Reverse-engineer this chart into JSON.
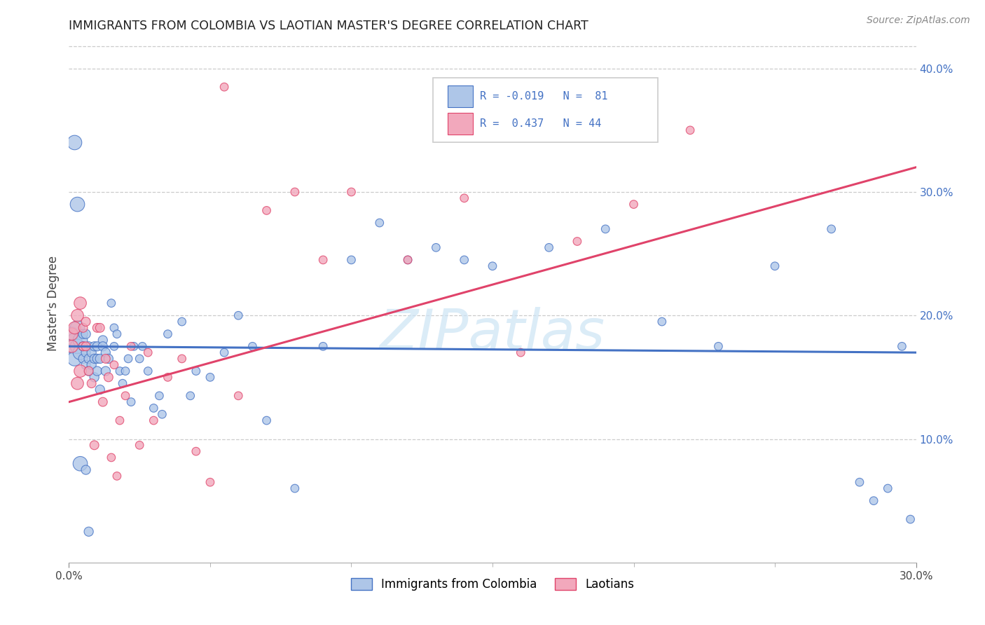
{
  "title": "IMMIGRANTS FROM COLOMBIA VS LAOTIAN MASTER'S DEGREE CORRELATION CHART",
  "source": "Source: ZipAtlas.com",
  "ylabel": "Master's Degree",
  "right_yticks": [
    "40.0%",
    "30.0%",
    "20.0%",
    "10.0%"
  ],
  "right_ytick_vals": [
    0.4,
    0.3,
    0.2,
    0.1
  ],
  "watermark": "ZIPatlas",
  "color_colombia": "#aec6e8",
  "color_laotian": "#f2a8bc",
  "color_line_colombia": "#4472c4",
  "color_line_laotian": "#e0436a",
  "xlim": [
    0.0,
    0.3
  ],
  "ylim": [
    0.0,
    0.42
  ],
  "colombia_trend": [
    0.175,
    0.17
  ],
  "laotian_trend": [
    0.13,
    0.32
  ],
  "colombia_x": [
    0.001,
    0.001,
    0.002,
    0.002,
    0.003,
    0.003,
    0.004,
    0.004,
    0.005,
    0.005,
    0.005,
    0.006,
    0.006,
    0.006,
    0.007,
    0.007,
    0.007,
    0.008,
    0.008,
    0.009,
    0.009,
    0.009,
    0.01,
    0.01,
    0.01,
    0.011,
    0.011,
    0.012,
    0.012,
    0.013,
    0.013,
    0.014,
    0.015,
    0.016,
    0.016,
    0.017,
    0.018,
    0.019,
    0.02,
    0.021,
    0.022,
    0.023,
    0.025,
    0.026,
    0.028,
    0.03,
    0.032,
    0.033,
    0.035,
    0.04,
    0.043,
    0.045,
    0.05,
    0.055,
    0.06,
    0.065,
    0.07,
    0.08,
    0.09,
    0.1,
    0.11,
    0.12,
    0.13,
    0.14,
    0.15,
    0.17,
    0.19,
    0.21,
    0.23,
    0.25,
    0.27,
    0.28,
    0.285,
    0.29,
    0.295,
    0.298,
    0.002,
    0.003,
    0.004,
    0.006,
    0.007
  ],
  "colombia_y": [
    0.185,
    0.175,
    0.18,
    0.165,
    0.19,
    0.175,
    0.17,
    0.18,
    0.185,
    0.165,
    0.175,
    0.185,
    0.17,
    0.16,
    0.175,
    0.165,
    0.155,
    0.17,
    0.16,
    0.165,
    0.175,
    0.15,
    0.155,
    0.165,
    0.175,
    0.14,
    0.165,
    0.18,
    0.175,
    0.17,
    0.155,
    0.165,
    0.21,
    0.175,
    0.19,
    0.185,
    0.155,
    0.145,
    0.155,
    0.165,
    0.13,
    0.175,
    0.165,
    0.175,
    0.155,
    0.125,
    0.135,
    0.12,
    0.185,
    0.195,
    0.135,
    0.155,
    0.15,
    0.17,
    0.2,
    0.175,
    0.115,
    0.06,
    0.175,
    0.245,
    0.275,
    0.245,
    0.255,
    0.245,
    0.24,
    0.255,
    0.27,
    0.195,
    0.175,
    0.24,
    0.27,
    0.065,
    0.05,
    0.06,
    0.175,
    0.035,
    0.34,
    0.29,
    0.08,
    0.075,
    0.025
  ],
  "laotian_x": [
    0.001,
    0.001,
    0.002,
    0.003,
    0.003,
    0.004,
    0.004,
    0.005,
    0.005,
    0.006,
    0.006,
    0.007,
    0.008,
    0.009,
    0.01,
    0.011,
    0.012,
    0.013,
    0.014,
    0.015,
    0.016,
    0.017,
    0.018,
    0.02,
    0.022,
    0.025,
    0.028,
    0.03,
    0.035,
    0.04,
    0.045,
    0.05,
    0.055,
    0.06,
    0.07,
    0.08,
    0.09,
    0.1,
    0.12,
    0.14,
    0.16,
    0.18,
    0.2,
    0.22
  ],
  "laotian_y": [
    0.185,
    0.175,
    0.19,
    0.2,
    0.145,
    0.21,
    0.155,
    0.19,
    0.175,
    0.195,
    0.175,
    0.155,
    0.145,
    0.095,
    0.19,
    0.19,
    0.13,
    0.165,
    0.15,
    0.085,
    0.16,
    0.07,
    0.115,
    0.135,
    0.175,
    0.095,
    0.17,
    0.115,
    0.15,
    0.165,
    0.09,
    0.065,
    0.385,
    0.135,
    0.285,
    0.3,
    0.245,
    0.3,
    0.245,
    0.295,
    0.17,
    0.26,
    0.29,
    0.35
  ]
}
